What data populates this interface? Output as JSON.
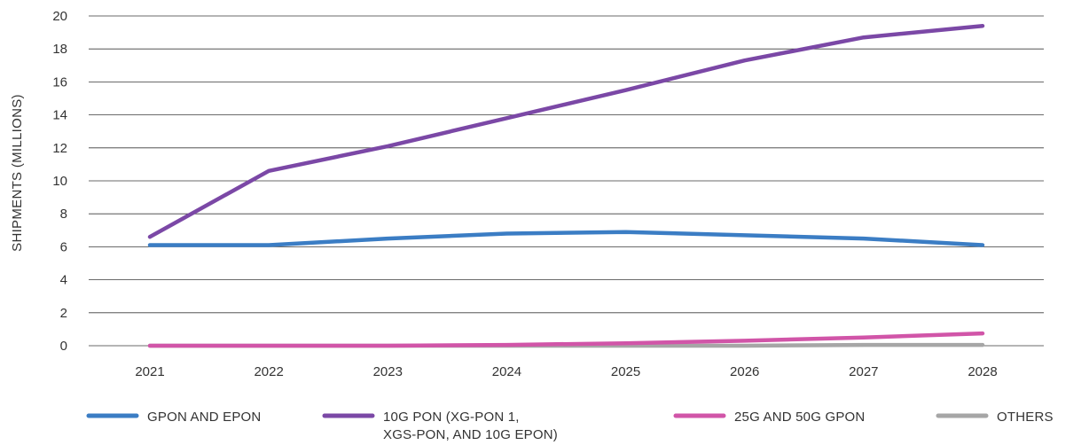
{
  "chart_data": {
    "type": "line",
    "title": "",
    "xlabel": "",
    "ylabel": "SHIPMENTS (MILLIONS)",
    "categories": [
      "2021",
      "2022",
      "2023",
      "2024",
      "2025",
      "2026",
      "2027",
      "2028"
    ],
    "ylim": [
      0,
      20
    ],
    "yticks": [
      0,
      2,
      4,
      6,
      8,
      10,
      12,
      14,
      16,
      18,
      20
    ],
    "grid": true,
    "legend_position": "bottom",
    "series": [
      {
        "name": "GPON AND EPON",
        "legend_lines": [
          "GPON AND EPON"
        ],
        "color": "#3b7dc4",
        "values": [
          6.1,
          6.1,
          6.5,
          6.8,
          6.9,
          6.7,
          6.5,
          6.1
        ]
      },
      {
        "name": "10G PON (XG-PON 1, XGS-PON, AND 10G EPON)",
        "legend_lines": [
          "10G PON (XG-PON 1,",
          "XGS-PON, AND 10G EPON)"
        ],
        "color": "#7b48a6",
        "values": [
          6.6,
          10.6,
          12.1,
          13.8,
          15.5,
          17.3,
          18.7,
          19.4
        ]
      },
      {
        "name": "25G AND 50G GPON",
        "legend_lines": [
          "25G AND 50G GPON"
        ],
        "color": "#d155a8",
        "values": [
          0.0,
          0.0,
          0.0,
          0.05,
          0.15,
          0.3,
          0.5,
          0.75
        ]
      },
      {
        "name": "OTHERS",
        "legend_lines": [
          "OTHERS"
        ],
        "color": "#a6a6a6",
        "values": [
          0.0,
          0.0,
          0.0,
          0.0,
          0.0,
          0.0,
          0.05,
          0.05
        ]
      }
    ]
  }
}
